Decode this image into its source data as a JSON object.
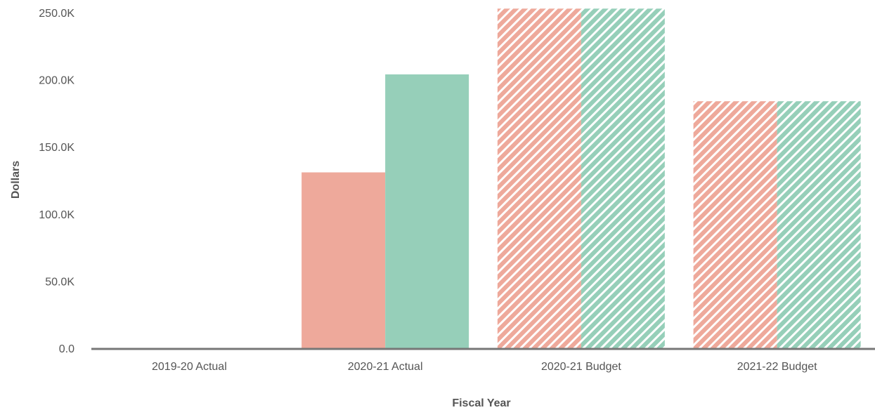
{
  "chart_data": {
    "type": "bar",
    "xlabel": "Fiscal Year",
    "ylabel": "Dollars",
    "categories": [
      "2019-20 Actual",
      "2020-21 Actual",
      "2020-21 Budget",
      "2021-22 Budget"
    ],
    "ylim": [
      0,
      250000
    ],
    "yticks": [
      0,
      50000,
      100000,
      150000,
      200000,
      250000
    ],
    "ytick_labels": [
      "0.0",
      "50.0K",
      "100.0K",
      "150.0K",
      "200.0K",
      "250.0K"
    ],
    "series": [
      {
        "color": "#eea99b",
        "values": [
          0,
          131000,
          253000,
          184000
        ]
      },
      {
        "color": "#96cfb9",
        "values": [
          0,
          204000,
          253000,
          184000
        ]
      }
    ],
    "hatched_categories": [
      "2020-21 Budget",
      "2021-22 Budget"
    ],
    "grid": false,
    "legend": "none"
  }
}
